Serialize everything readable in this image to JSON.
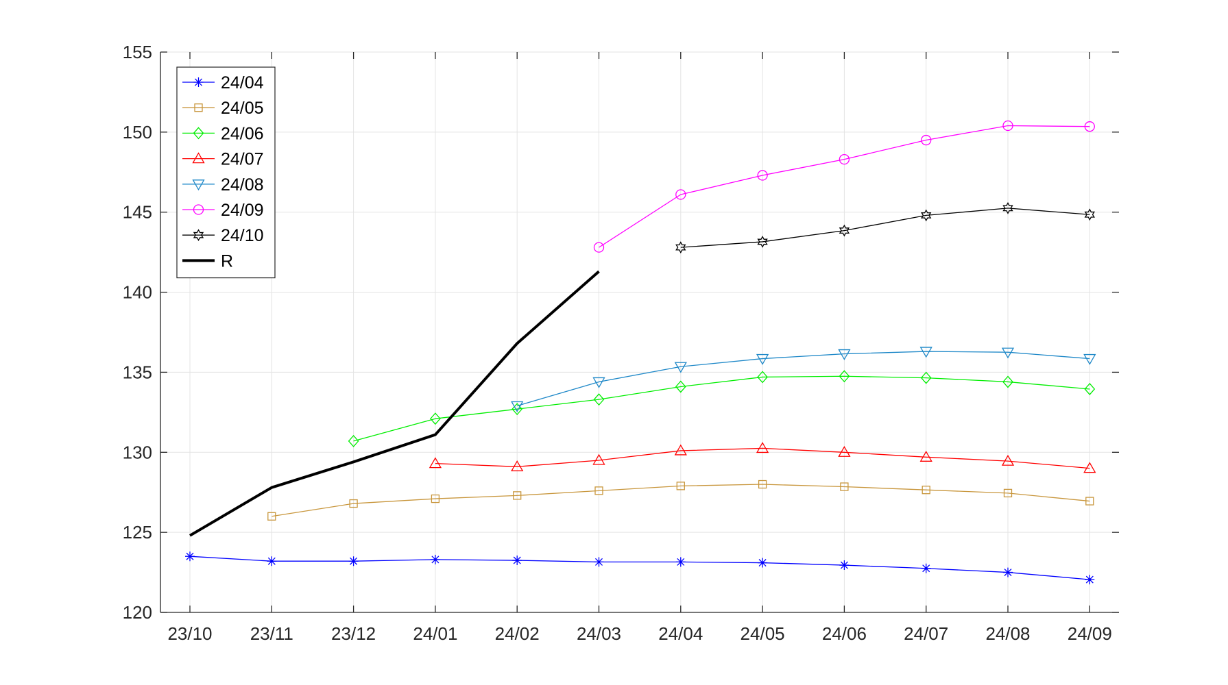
{
  "chart_data": {
    "type": "line",
    "title": "",
    "xlabel": "",
    "ylabel": "",
    "categories": [
      "23/10",
      "23/11",
      "23/12",
      "24/01",
      "24/02",
      "24/03",
      "24/04",
      "24/05",
      "24/06",
      "24/07",
      "24/08",
      "24/09"
    ],
    "yticks": [
      120,
      125,
      130,
      135,
      140,
      145,
      150,
      155
    ],
    "ylim": [
      120,
      155
    ],
    "grid": true,
    "legend_position": "top-left",
    "series": [
      {
        "name": "24/04",
        "color": "#0000ff",
        "marker": "asterisk",
        "width": 1.3,
        "values": [
          123.5,
          123.2,
          123.2,
          123.3,
          123.25,
          123.15,
          123.15,
          123.1,
          122.95,
          122.75,
          122.5,
          122.05
        ]
      },
      {
        "name": "24/05",
        "color": "#c8963c",
        "marker": "square",
        "width": 1.3,
        "values": [
          null,
          126.0,
          126.8,
          127.1,
          127.3,
          127.6,
          127.9,
          128.0,
          127.85,
          127.65,
          127.45,
          126.95
        ]
      },
      {
        "name": "24/06",
        "color": "#00ee00",
        "marker": "diamond",
        "width": 1.3,
        "values": [
          null,
          null,
          130.7,
          132.1,
          132.7,
          133.3,
          134.1,
          134.7,
          134.75,
          134.65,
          134.4,
          133.95
        ]
      },
      {
        "name": "24/07",
        "color": "#ff0000",
        "marker": "triangle-up",
        "width": 1.3,
        "values": [
          null,
          null,
          null,
          129.3,
          129.1,
          129.5,
          130.1,
          130.25,
          130.0,
          129.7,
          129.45,
          129.0
        ]
      },
      {
        "name": "24/08",
        "color": "#1e88c8",
        "marker": "triangle-down",
        "width": 1.3,
        "values": [
          null,
          null,
          null,
          null,
          132.9,
          134.4,
          135.35,
          135.85,
          136.15,
          136.3,
          136.25,
          135.85
        ]
      },
      {
        "name": "24/09",
        "color": "#ff00ff",
        "marker": "circle",
        "width": 1.3,
        "values": [
          null,
          null,
          null,
          null,
          null,
          142.8,
          146.1,
          147.3,
          148.3,
          149.5,
          150.4,
          150.35
        ]
      },
      {
        "name": "24/10",
        "color": "#000000",
        "marker": "hexagram",
        "width": 1.3,
        "values": [
          null,
          null,
          null,
          null,
          null,
          null,
          142.8,
          143.15,
          143.85,
          144.8,
          145.25,
          144.85
        ]
      },
      {
        "name": "R",
        "color": "#000000",
        "marker": "none",
        "width": 4,
        "values": [
          124.8,
          127.8,
          129.4,
          131.1,
          136.8,
          141.3,
          null,
          null,
          null,
          null,
          null,
          null
        ]
      }
    ]
  }
}
